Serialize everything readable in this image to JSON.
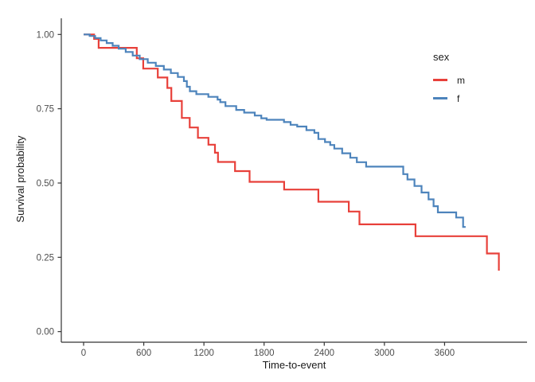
{
  "style": {
    "background": "#ffffff",
    "axis_color": "#333333",
    "tick_label_color": "#4d4d4d",
    "title_color": "#1a1a1a"
  },
  "chart_data": {
    "type": "line",
    "subtype": "kaplan-meier-step",
    "title": "",
    "xlabel": "Time-to-event",
    "ylabel": "Survival probability",
    "grid": false,
    "xlim": [
      0,
      4200
    ],
    "ylim": [
      0,
      1
    ],
    "x_ticks": [
      0,
      600,
      1200,
      1800,
      2400,
      3000,
      3600
    ],
    "x_tick_labels": [
      "0",
      "600",
      "1200",
      "1800",
      "2400",
      "3000",
      "3600"
    ],
    "y_ticks": [
      0,
      0.25,
      0.5,
      0.75,
      1
    ],
    "y_tick_labels": [
      "0.00",
      "0.25",
      "0.50",
      "0.75",
      "1.00"
    ],
    "legend": {
      "title": "sex",
      "position": "right-top",
      "entries": [
        {
          "label": "m",
          "color": "#e8403a"
        },
        {
          "label": "f",
          "color": "#4d84bc"
        }
      ]
    },
    "series": [
      {
        "name": "m",
        "color": "#e8403a",
        "end_t": 4141,
        "points": [
          [
            0,
            1.0
          ],
          [
            105,
            0.985
          ],
          [
            150,
            0.955
          ],
          [
            530,
            0.92
          ],
          [
            595,
            0.885
          ],
          [
            740,
            0.855
          ],
          [
            835,
            0.82
          ],
          [
            875,
            0.776
          ],
          [
            980,
            0.719
          ],
          [
            1058,
            0.687
          ],
          [
            1140,
            0.652
          ],
          [
            1245,
            0.629
          ],
          [
            1310,
            0.602
          ],
          [
            1340,
            0.571
          ],
          [
            1510,
            0.54
          ],
          [
            1655,
            0.504
          ],
          [
            2000,
            0.478
          ],
          [
            2341,
            0.437
          ],
          [
            2645,
            0.404
          ],
          [
            2751,
            0.361
          ],
          [
            3310,
            0.321
          ],
          [
            4022,
            0.263
          ],
          [
            4141,
            0.205
          ]
        ]
      },
      {
        "name": "f",
        "color": "#4d84bc",
        "end_t": 3810,
        "points": [
          [
            0,
            1.0
          ],
          [
            60,
            0.995
          ],
          [
            115,
            0.988
          ],
          [
            170,
            0.98
          ],
          [
            230,
            0.971
          ],
          [
            290,
            0.962
          ],
          [
            350,
            0.952
          ],
          [
            420,
            0.941
          ],
          [
            490,
            0.929
          ],
          [
            560,
            0.917
          ],
          [
            640,
            0.905
          ],
          [
            720,
            0.894
          ],
          [
            800,
            0.882
          ],
          [
            870,
            0.87
          ],
          [
            940,
            0.857
          ],
          [
            1000,
            0.843
          ],
          [
            1030,
            0.824
          ],
          [
            1060,
            0.809
          ],
          [
            1124,
            0.799
          ],
          [
            1244,
            0.79
          ],
          [
            1336,
            0.781
          ],
          [
            1363,
            0.772
          ],
          [
            1415,
            0.759
          ],
          [
            1522,
            0.746
          ],
          [
            1601,
            0.737
          ],
          [
            1707,
            0.727
          ],
          [
            1772,
            0.718
          ],
          [
            1825,
            0.713
          ],
          [
            1998,
            0.705
          ],
          [
            2064,
            0.696
          ],
          [
            2130,
            0.69
          ],
          [
            2222,
            0.678
          ],
          [
            2302,
            0.669
          ],
          [
            2341,
            0.648
          ],
          [
            2407,
            0.638
          ],
          [
            2460,
            0.628
          ],
          [
            2500,
            0.616
          ],
          [
            2579,
            0.6
          ],
          [
            2660,
            0.585
          ],
          [
            2725,
            0.57
          ],
          [
            2818,
            0.555
          ],
          [
            3188,
            0.53
          ],
          [
            3230,
            0.512
          ],
          [
            3300,
            0.49
          ],
          [
            3370,
            0.468
          ],
          [
            3440,
            0.445
          ],
          [
            3490,
            0.422
          ],
          [
            3533,
            0.401
          ],
          [
            3716,
            0.384
          ],
          [
            3785,
            0.352
          ]
        ]
      }
    ]
  }
}
